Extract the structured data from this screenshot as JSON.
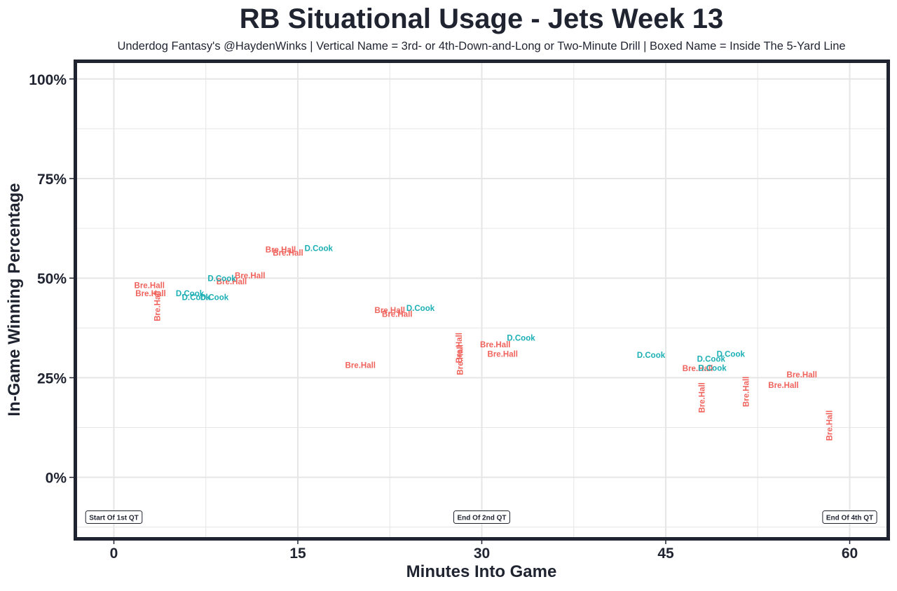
{
  "colors": {
    "frame": "#1f2430",
    "grid": "#e6e6e6",
    "text": "#1f2430",
    "series": {
      "Bre.Hall": "#f0625b",
      "D.Cook": "#1aafb4"
    }
  },
  "chart_data": {
    "type": "scatter",
    "title": "RB Situational Usage - Jets Week 13",
    "subtitle": "Underdog Fantasy's @HaydenWinks | Vertical Name = 3rd- or 4th-Down-and-Long or Two-Minute Drill | Boxed Name = Inside The 5-Yard Line",
    "xlabel": "Minutes Into Game",
    "ylabel": "In-Game Winning Percentage",
    "xlim": [
      -3,
      63
    ],
    "ylim": [
      -15,
      104
    ],
    "x_ticks": [
      0,
      15,
      30,
      45,
      60
    ],
    "x_tick_labels": [
      "0",
      "15",
      "30",
      "45",
      "60"
    ],
    "y_ticks": [
      0,
      25,
      50,
      75,
      100
    ],
    "y_tick_labels": [
      "0%",
      "25%",
      "50%",
      "75%",
      "100%"
    ],
    "grid": true,
    "legend": "none",
    "annotations": [
      {
        "text": "Start Of 1st QT",
        "x": 0,
        "y": -10
      },
      {
        "text": "End Of 2nd QT",
        "x": 30,
        "y": -10
      },
      {
        "text": "End Of 4th QT",
        "x": 60,
        "y": -10
      }
    ],
    "series": [
      {
        "name": "Bre.Hall",
        "points": [
          {
            "x": 2.9,
            "y": 48.0,
            "label": "Bre.Hall",
            "vertical": false
          },
          {
            "x": 3.0,
            "y": 46.0,
            "label": "Bre.Hall",
            "vertical": false
          },
          {
            "x": 3.6,
            "y": 43.0,
            "label": "Bre.Hall",
            "vertical": true
          },
          {
            "x": 11.1,
            "y": 50.5,
            "label": "Bre.Hall",
            "vertical": false
          },
          {
            "x": 9.6,
            "y": 49.0,
            "label": "Bre.Hall",
            "vertical": false
          },
          {
            "x": 13.6,
            "y": 57.0,
            "label": "Bre.Hall",
            "vertical": false
          },
          {
            "x": 14.2,
            "y": 56.2,
            "label": "Bre.Hall",
            "vertical": false
          },
          {
            "x": 22.5,
            "y": 41.8,
            "label": "Bre.Hall",
            "vertical": false
          },
          {
            "x": 23.1,
            "y": 40.8,
            "label": "Bre.Hall",
            "vertical": false
          },
          {
            "x": 20.1,
            "y": 28.0,
            "label": "Bre.Hall",
            "vertical": false
          },
          {
            "x": 28.2,
            "y": 32.5,
            "label": "Bre.Hall",
            "vertical": true
          },
          {
            "x": 28.3,
            "y": 29.5,
            "label": "Bre.Hall",
            "vertical": true
          },
          {
            "x": 31.1,
            "y": 33.2,
            "label": "Bre.Hall",
            "vertical": false
          },
          {
            "x": 31.7,
            "y": 30.8,
            "label": "Bre.Hall",
            "vertical": false
          },
          {
            "x": 47.6,
            "y": 27.2,
            "label": "Bre.Hall",
            "vertical": false
          },
          {
            "x": 48.0,
            "y": 20.0,
            "label": "Bre.Hall",
            "vertical": true
          },
          {
            "x": 51.6,
            "y": 21.5,
            "label": "Bre.Hall",
            "vertical": true
          },
          {
            "x": 54.6,
            "y": 23.0,
            "label": "Bre.Hall",
            "vertical": false
          },
          {
            "x": 56.1,
            "y": 25.6,
            "label": "Bre.Hall",
            "vertical": false
          },
          {
            "x": 58.4,
            "y": 13.0,
            "label": "Bre.Hall",
            "vertical": true
          }
        ]
      },
      {
        "name": "D.Cook",
        "points": [
          {
            "x": 6.2,
            "y": 46.0,
            "label": "D.Cook",
            "vertical": false
          },
          {
            "x": 6.7,
            "y": 45.0,
            "label": "D.Cook",
            "vertical": false
          },
          {
            "x": 8.2,
            "y": 45.0,
            "label": "D.Cook",
            "vertical": false
          },
          {
            "x": 8.8,
            "y": 49.8,
            "label": "D.Cook",
            "vertical": false
          },
          {
            "x": 16.7,
            "y": 57.3,
            "label": "D.Cook",
            "vertical": false
          },
          {
            "x": 25.0,
            "y": 42.3,
            "label": "D.Cook",
            "vertical": false
          },
          {
            "x": 33.2,
            "y": 34.8,
            "label": "D.Cook",
            "vertical": false
          },
          {
            "x": 43.8,
            "y": 30.5,
            "label": "D.Cook",
            "vertical": false
          },
          {
            "x": 48.7,
            "y": 29.6,
            "label": "D.Cook",
            "vertical": false
          },
          {
            "x": 50.3,
            "y": 30.8,
            "label": "D.Cook",
            "vertical": false
          },
          {
            "x": 48.8,
            "y": 27.3,
            "label": "D.Cook",
            "vertical": false
          }
        ]
      }
    ]
  }
}
